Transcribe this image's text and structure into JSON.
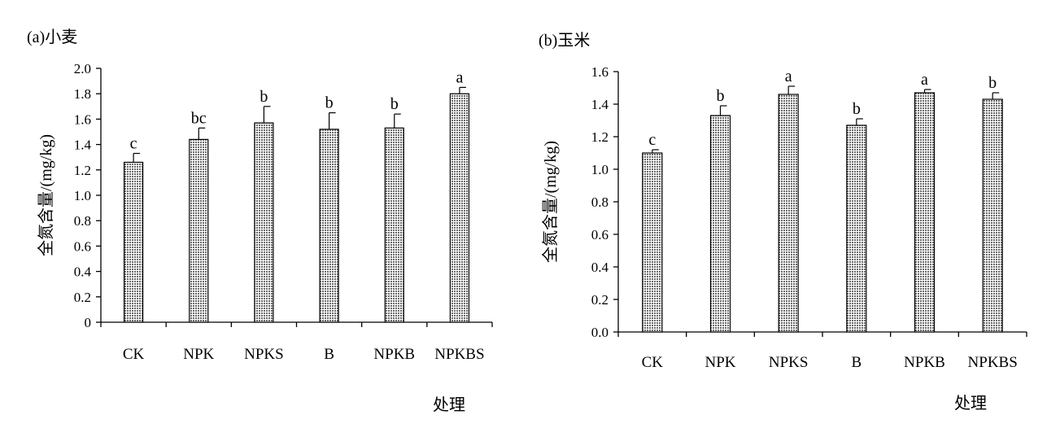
{
  "chart_data": [
    {
      "type": "bar",
      "title": "(a)小麦",
      "xlabel": "处理",
      "ylabel": "全氮含量/(mg/kg)",
      "categories": [
        "CK",
        "NPK",
        "NPKS",
        "B",
        "NPKB",
        "NPKBS"
      ],
      "values": [
        1.26,
        1.44,
        1.57,
        1.52,
        1.53,
        1.8
      ],
      "errors": [
        0.07,
        0.09,
        0.13,
        0.13,
        0.11,
        0.05
      ],
      "significance": [
        "c",
        "bc",
        "b",
        "b",
        "b",
        "a"
      ],
      "yticks": [
        "0",
        "0.2",
        "0.4",
        "0.6",
        "0.8",
        "1.0",
        "1.2",
        "1.4",
        "1.6",
        "1.8",
        "2.0"
      ],
      "ylim": [
        0,
        2.0
      ],
      "grid": false,
      "bar_color": "#a9a9a9"
    },
    {
      "type": "bar",
      "title": "(b)玉米",
      "xlabel": "处理",
      "ylabel": "全氮含量/(mg/kg)",
      "categories": [
        "CK",
        "NPK",
        "NPKS",
        "B",
        "NPKB",
        "NPKBS"
      ],
      "values": [
        1.1,
        1.33,
        1.46,
        1.27,
        1.47,
        1.43
      ],
      "errors": [
        0.02,
        0.06,
        0.05,
        0.04,
        0.02,
        0.04
      ],
      "significance": [
        "c",
        "b",
        "a",
        "b",
        "a",
        "b"
      ],
      "yticks": [
        "0.0",
        "0.2",
        "0.4",
        "0.6",
        "0.8",
        "1.0",
        "1.2",
        "1.4",
        "1.6"
      ],
      "ylim": [
        0,
        1.6
      ],
      "grid": false,
      "bar_color": "#a9a9a9"
    }
  ]
}
